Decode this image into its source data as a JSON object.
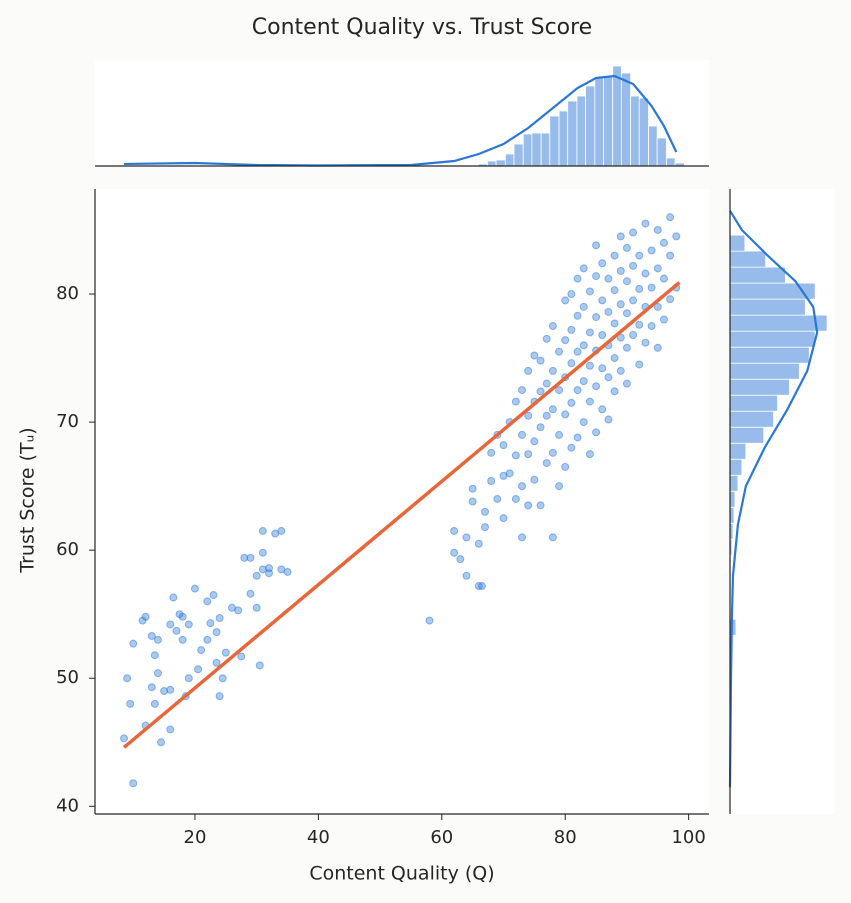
{
  "chart_data": [
    {
      "type": "scatter",
      "title": "Content Quality vs. Trust Score",
      "x_label": "Content Quality (Q)",
      "y_label": "Trust Score (Tᵤ)",
      "xlim": [
        3.8,
        103.3
      ],
      "ylim": [
        39.4,
        88.2
      ],
      "xticks": [
        20,
        40,
        60,
        80,
        100
      ],
      "yticks": [
        40,
        50,
        60,
        70,
        80
      ],
      "color": "#2a77d6",
      "x": [
        8.5,
        9,
        9.5,
        10,
        10,
        11.5,
        12,
        12,
        13,
        13,
        13.5,
        13.5,
        14,
        14,
        14.5,
        15,
        16,
        16,
        16.5,
        16,
        17,
        17.5,
        18,
        18,
        18.5,
        19,
        19,
        20,
        20.5,
        21,
        22,
        22,
        22.5,
        23,
        23.5,
        23.5,
        24,
        24,
        24.5,
        25,
        26,
        27,
        27.5,
        28,
        29,
        29,
        30,
        30,
        30.5,
        31,
        31,
        31,
        32,
        32,
        33,
        34,
        34,
        35,
        58,
        62,
        62,
        63,
        64,
        64,
        65,
        65,
        66,
        66.5,
        66,
        67,
        67,
        68,
        68,
        69,
        69,
        70,
        70,
        70,
        71,
        71,
        72,
        72,
        72,
        73,
        73,
        73,
        73,
        74,
        74,
        74,
        74,
        75,
        75,
        75,
        75,
        76,
        76,
        76,
        76,
        77,
        77,
        77,
        77,
        78,
        78,
        78,
        78,
        78,
        79,
        79,
        79,
        79,
        80,
        80,
        80,
        80,
        80,
        81,
        81,
        81,
        81,
        81,
        82,
        82,
        82,
        82,
        82,
        83,
        83,
        83,
        83,
        83,
        84,
        84,
        84,
        84,
        84,
        85,
        85,
        85,
        85,
        85,
        85,
        86,
        86,
        86,
        86,
        86,
        87,
        87,
        87,
        87,
        87,
        88,
        88,
        88,
        88,
        88,
        89,
        89,
        89,
        89,
        89,
        90,
        90,
        90,
        90,
        90,
        91,
        91,
        91,
        91,
        92,
        92,
        92,
        92,
        93,
        93,
        93,
        93,
        94,
        94,
        94,
        95,
        95,
        95,
        95,
        96,
        96,
        96,
        97,
        97,
        97,
        98,
        98
      ],
      "values": [
        45.3,
        50,
        48,
        41.8,
        52.7,
        54.5,
        54.8,
        46.3,
        49.3,
        53.3,
        51.8,
        48,
        50.4,
        53,
        45,
        49,
        49.1,
        54.2,
        56.3,
        46,
        53.7,
        55,
        54.8,
        53,
        48.6,
        50,
        54.2,
        57,
        50.7,
        52.2,
        56,
        53,
        54.3,
        56.5,
        51.2,
        53.6,
        54.7,
        48.6,
        50,
        52,
        55.5,
        55.3,
        51.7,
        59.4,
        56.6,
        59.4,
        55.5,
        58,
        51,
        61.5,
        59.8,
        58.5,
        58.6,
        58.2,
        61.3,
        61.5,
        58.5,
        58.3,
        54.5,
        59.8,
        61.5,
        59.3,
        58,
        61,
        63.8,
        64.8,
        57.2,
        57.2,
        60.5,
        61.8,
        63,
        65.4,
        67.6,
        64,
        69,
        62.5,
        65.8,
        68.2,
        66,
        70,
        64,
        67.4,
        71.6,
        61,
        65,
        69,
        72.5,
        63.5,
        67.5,
        70.5,
        74,
        65.5,
        68.5,
        71.6,
        75.2,
        63.5,
        69.6,
        72.4,
        74.8,
        66.8,
        70.5,
        73,
        76.5,
        61,
        67.6,
        71,
        74,
        77.5,
        65,
        69,
        72.5,
        75.5,
        66.5,
        70.6,
        73.5,
        76.4,
        79.5,
        68,
        71.5,
        74.6,
        77.2,
        80,
        68.8,
        72.5,
        75.5,
        78.3,
        81.2,
        70,
        73.2,
        76,
        79,
        82,
        67.5,
        71.6,
        74.4,
        77,
        80.2,
        69.2,
        72.8,
        75.6,
        78.2,
        81.4,
        83.8,
        71,
        74.2,
        76.8,
        79.5,
        82.4,
        70.2,
        73.5,
        76,
        78.6,
        81.2,
        72.4,
        75,
        77.7,
        80.3,
        83,
        74,
        76.6,
        79.2,
        81.8,
        84.5,
        73,
        75.8,
        78.5,
        81,
        83.6,
        76.8,
        79.5,
        82.2,
        84.8,
        74.5,
        77.6,
        80.4,
        83,
        76.2,
        79,
        81.6,
        85.5,
        77.5,
        80.5,
        83.4,
        75.8,
        79,
        82,
        85,
        78,
        81.2,
        84,
        79.6,
        83,
        86,
        80.5,
        84.5
      ],
      "regression": {
        "color": "#e8673a",
        "x": [
          8.5,
          98.5
        ],
        "values": [
          44.6,
          80.9
        ]
      }
    },
    {
      "type": "histogram",
      "orientation": "vertical",
      "color": "#97bbeb",
      "xlim": [
        3.8,
        103.3
      ],
      "ylim": [
        0,
        106
      ],
      "bins": [
        65.9,
        67.4,
        68.8,
        70.3,
        71.7,
        73.2,
        74.6,
        76.1,
        77.5,
        79.0,
        80.4,
        81.9,
        83.3,
        84.8,
        86.2,
        87.7,
        89.1,
        90.6,
        92.0,
        93.5,
        94.9,
        96.4,
        97.8,
        99.3
      ],
      "values": [
        2,
        5,
        6,
        12,
        22,
        32,
        33,
        33,
        50,
        55,
        65,
        70,
        80,
        88,
        90,
        100,
        93,
        70,
        68,
        40,
        28,
        8,
        3
      ],
      "kde": {
        "color": "#2a77d6",
        "x": [
          8.5,
          20,
          30,
          40,
          55,
          62,
          66,
          70,
          74,
          78,
          82,
          85,
          88,
          91,
          94,
          96,
          98
        ],
        "values": [
          2,
          3,
          1,
          0.5,
          1,
          5,
          12,
          22,
          38,
          58,
          78,
          88,
          90,
          82,
          60,
          40,
          14
        ]
      }
    },
    {
      "type": "histogram",
      "orientation": "horizontal",
      "color": "#97bbeb",
      "xlim": [
        0,
        106
      ],
      "ylim": [
        39.4,
        88.2
      ],
      "bins": [
        49.6,
        50.85,
        52.1,
        53.35,
        54.6,
        55.85,
        57.1,
        58.35,
        59.6,
        60.85,
        62.1,
        63.35,
        64.6,
        65.85,
        67.1,
        68.35,
        69.6,
        70.85,
        72.1,
        73.35,
        74.6,
        75.85,
        77.1,
        78.35,
        79.6,
        80.85,
        82.1,
        83.35,
        84.6
      ],
      "values": [
        1,
        1,
        2,
        6,
        1,
        1,
        1,
        1,
        2,
        3,
        4,
        5,
        8,
        12,
        16,
        34,
        44,
        48,
        60,
        70,
        80,
        86,
        98,
        76,
        86,
        56,
        36,
        15
      ],
      "kde": {
        "color": "#2a77d6",
        "x": [
          41.5,
          50,
          55,
          58,
          62,
          65,
          68,
          71,
          74,
          77,
          79,
          81,
          83,
          85,
          86.5
        ],
        "values": [
          0,
          1,
          2,
          3,
          8,
          16,
          35,
          58,
          78,
          88,
          84,
          66,
          38,
          12,
          0
        ]
      }
    }
  ]
}
